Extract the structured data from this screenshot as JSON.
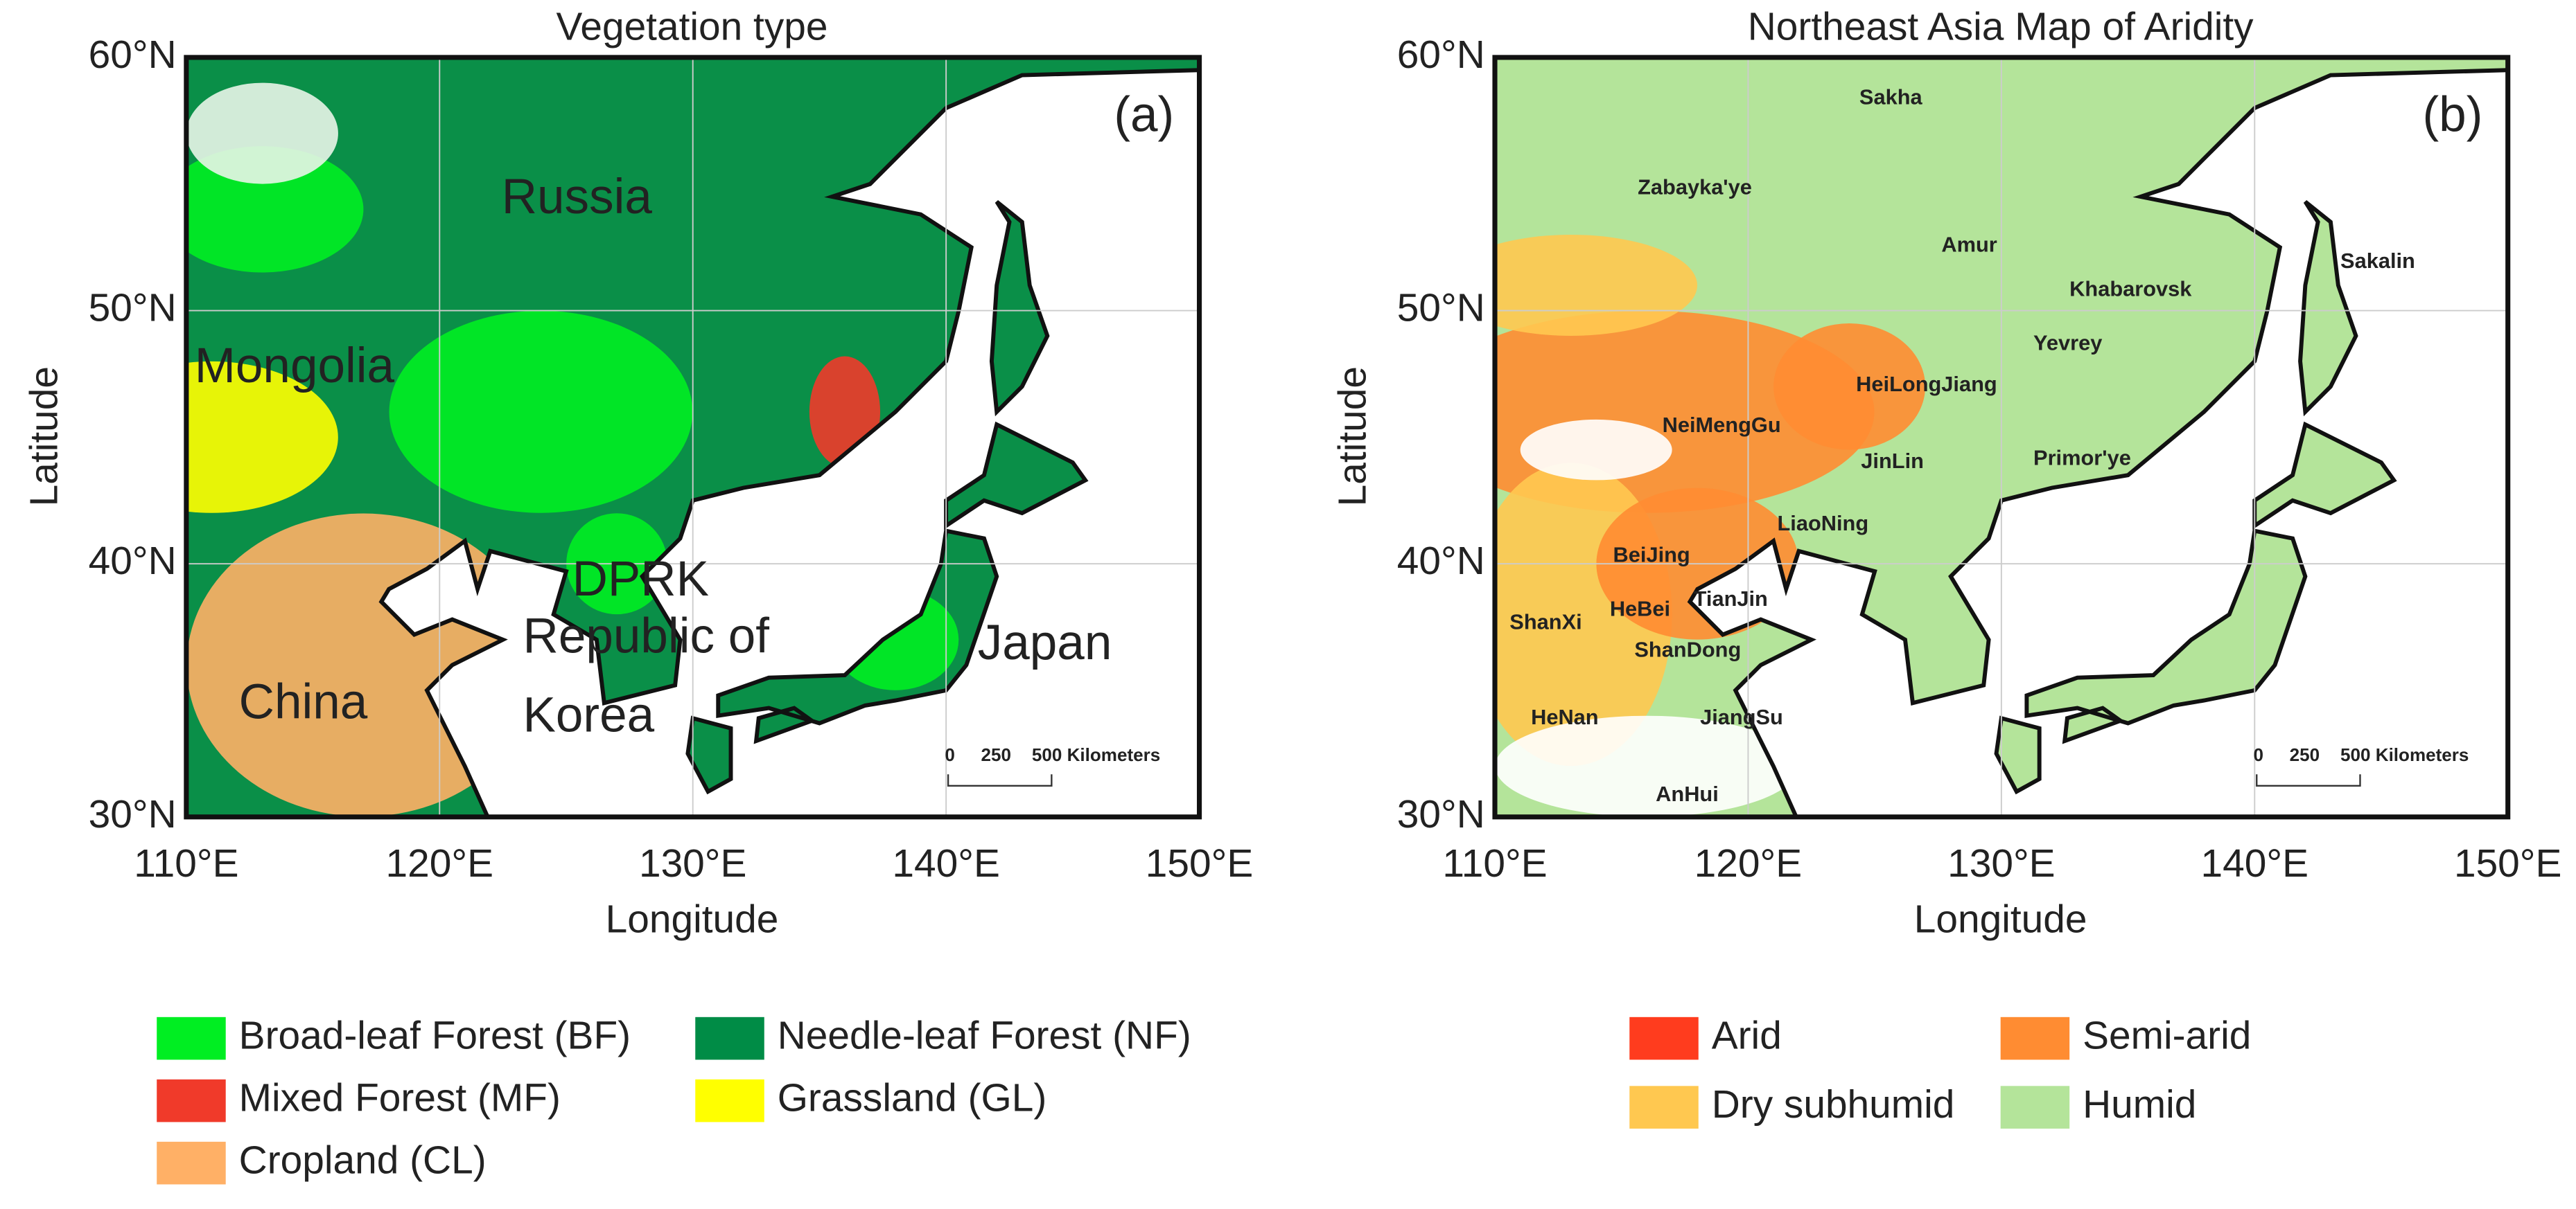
{
  "panels": [
    {
      "title": "Vegetation type",
      "tag": "(a)",
      "xlabel": "Longitude",
      "ylabel": "Latitude",
      "xticks": [
        "110°E",
        "120°E",
        "130°E",
        "140°E",
        "150°E"
      ],
      "yticks": [
        "30°N",
        "40°N",
        "50°N",
        "60°N"
      ],
      "places": [
        "Russia",
        "Mongolia",
        "DPRK",
        "Republic of",
        "Korea",
        "China",
        "Japan"
      ],
      "scale_bar": [
        "0",
        "250",
        "500 Kilometers"
      ],
      "legend": [
        {
          "label": "Broad-leaf Forest (BF)",
          "color": "#00ee22"
        },
        {
          "label": "Needle-leaf Forest (NF)",
          "color": "#008c46"
        },
        {
          "label": "Mixed Forest (MF)",
          "color": "#f03a2a"
        },
        {
          "label": "Grassland (GL)",
          "color": "#ffff00"
        },
        {
          "label": "Cropland (CL)",
          "color": "#ffb066"
        }
      ]
    },
    {
      "title": "Northeast Asia Map of Aridity",
      "tag": "(b)",
      "xlabel": "Longitude",
      "ylabel": "Latitude",
      "xticks": [
        "110°E",
        "120°E",
        "130°E",
        "140°E",
        "150°E"
      ],
      "yticks": [
        "30°N",
        "40°N",
        "50°N",
        "60°N"
      ],
      "places": [
        "Sakha",
        "Zabayka'ye",
        "Amur",
        "Sakalin",
        "Khabarovsk",
        "Yevrey",
        "HeiLongJiang",
        "NeiMengGu",
        "JinLin",
        "Primor'ye",
        "LiaoNing",
        "BeiJing",
        "TianJin",
        "ShanXi",
        "HeBei",
        "ShanDong",
        "HeNan",
        "JiangSu",
        "AnHui"
      ],
      "scale_bar": [
        "0",
        "250",
        "500 Kilometers"
      ],
      "legend": [
        {
          "label": "Arid",
          "color": "#ff3c1e"
        },
        {
          "label": "Semi-arid",
          "color": "#ff8c32"
        },
        {
          "label": "Dry subhumid",
          "color": "#ffc850"
        },
        {
          "label": "Humid",
          "color": "#b4e49a"
        }
      ]
    }
  ]
}
